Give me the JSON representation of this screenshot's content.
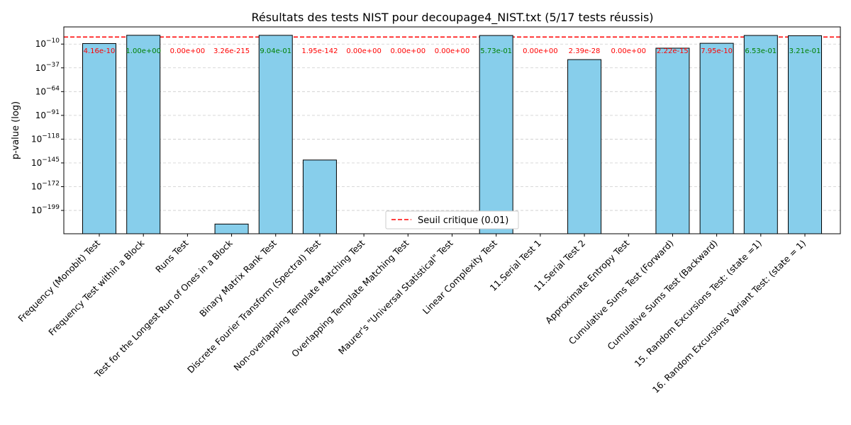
{
  "chart_data": {
    "type": "bar",
    "title": "Résultats des tests NIST pour decoupage4_NIST.txt (5/17 tests réussis)",
    "xlabel": "",
    "ylabel": "p-value (log)",
    "yscale": "log",
    "y_exponent_range": [
      -225.5,
      9.5
    ],
    "yticks": [
      {
        "base": "10",
        "exp": "−10",
        "value_exp": -10
      },
      {
        "base": "10",
        "exp": "−37",
        "value_exp": -37
      },
      {
        "base": "10",
        "exp": "−64",
        "value_exp": -64
      },
      {
        "base": "10",
        "exp": "−91",
        "value_exp": -91
      },
      {
        "base": "10",
        "exp": "−118",
        "value_exp": -118
      },
      {
        "base": "10",
        "exp": "−145",
        "value_exp": -145
      },
      {
        "base": "10",
        "exp": "−172",
        "value_exp": -172
      },
      {
        "base": "10",
        "exp": "−199",
        "value_exp": -199
      }
    ],
    "grid": "horizontal-dashed",
    "categories": [
      "Frequency (Monobit) Test",
      "Frequency Test within a Block",
      "Runs Test",
      "Test for the Longest Run of Ones in a Block",
      "Binary Matrix Rank Test",
      "Discrete Fourier Transform (Spectral) Test",
      "Non-overlapping Template Matching Test",
      "Overlapping Template Matching Test",
      "Maurer's \"Universal Statistical\" Test",
      "Linear Complexity Test",
      "11.Serial Test 1",
      "11.Serial Test 2",
      "Approximate Entropy Test",
      "Cumulative Sums Test (Forward)",
      "Cumulative Sums Test (Backward)",
      "15. Random Excursions Test: (state =1)",
      "16. Random Excursions Variant Test: (state = 1)"
    ],
    "value_labels": [
      "4.16e-10",
      "1.00e+00",
      "0.00e+00",
      "3.26e-215",
      "9.04e-01",
      "1.95e-142",
      "0.00e+00",
      "0.00e+00",
      "0.00e+00",
      "5.73e-01",
      "0.00e+00",
      "2.39e-28",
      "0.00e+00",
      "2.22e-15",
      "7.95e-10",
      "6.53e-01",
      "3.21e-01"
    ],
    "value_exponents": [
      -9.38,
      0,
      null,
      -214.49,
      -0.04,
      -141.71,
      null,
      null,
      null,
      -0.24,
      null,
      -27.62,
      null,
      -14.65,
      -9.1,
      -0.19,
      -0.49
    ],
    "passed": [
      false,
      true,
      false,
      false,
      true,
      false,
      false,
      false,
      false,
      true,
      false,
      false,
      false,
      false,
      false,
      true,
      true
    ],
    "threshold": {
      "value": 0.01,
      "label": "Seuil critique (0.01)",
      "color": "#ff0000"
    },
    "legend_position": "lower-center",
    "colors": {
      "bar_fill": "#87ceeb",
      "bar_edge": "#000000",
      "pass_label": "#008000",
      "fail_label": "#ff0000",
      "grid": "#cccccc"
    }
  }
}
